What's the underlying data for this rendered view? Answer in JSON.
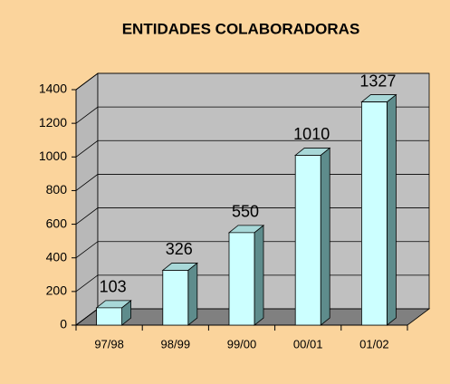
{
  "chart_data": {
    "type": "bar",
    "title": "ENTIDADES COLABORADORAS",
    "categories": [
      "97/98",
      "98/99",
      "99/00",
      "00/01",
      "01/02"
    ],
    "values": [
      103,
      326,
      550,
      1010,
      1327
    ],
    "color": "#ccffff",
    "ylim": [
      0,
      1400
    ],
    "yticks": [
      0,
      200,
      400,
      600,
      800,
      1000,
      1200,
      1400
    ],
    "grid": true
  }
}
